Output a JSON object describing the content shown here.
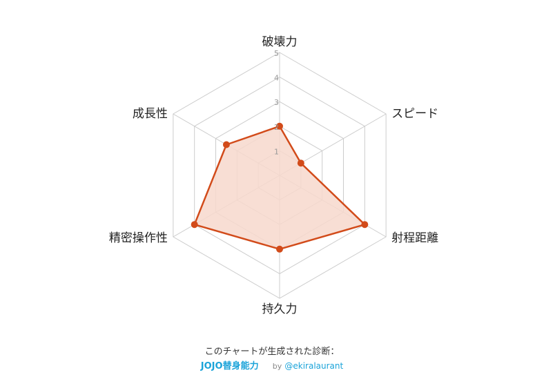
{
  "chart_data": {
    "type": "radar",
    "axes": [
      "破壊力",
      "スピード",
      "射程距離",
      "持久力",
      "精密操作性",
      "成長性"
    ],
    "values": [
      2,
      1,
      4,
      3,
      4,
      2.5
    ],
    "rmax": 5,
    "ticks": [
      "1",
      "2",
      "3",
      "4",
      "5"
    ],
    "grid": true,
    "colors": {
      "series": "#d24b1a",
      "fill": "#f7d8cc",
      "grid": "#cccccc",
      "tick_text": "#999999",
      "label_text": "#222222"
    }
  },
  "footer": {
    "caption": "このチャートが生成された診断：",
    "link_label": "JOJO替身能力",
    "by_label": "by",
    "author_label": "@ekiralaurant",
    "link_color": "#1aa3d9"
  }
}
